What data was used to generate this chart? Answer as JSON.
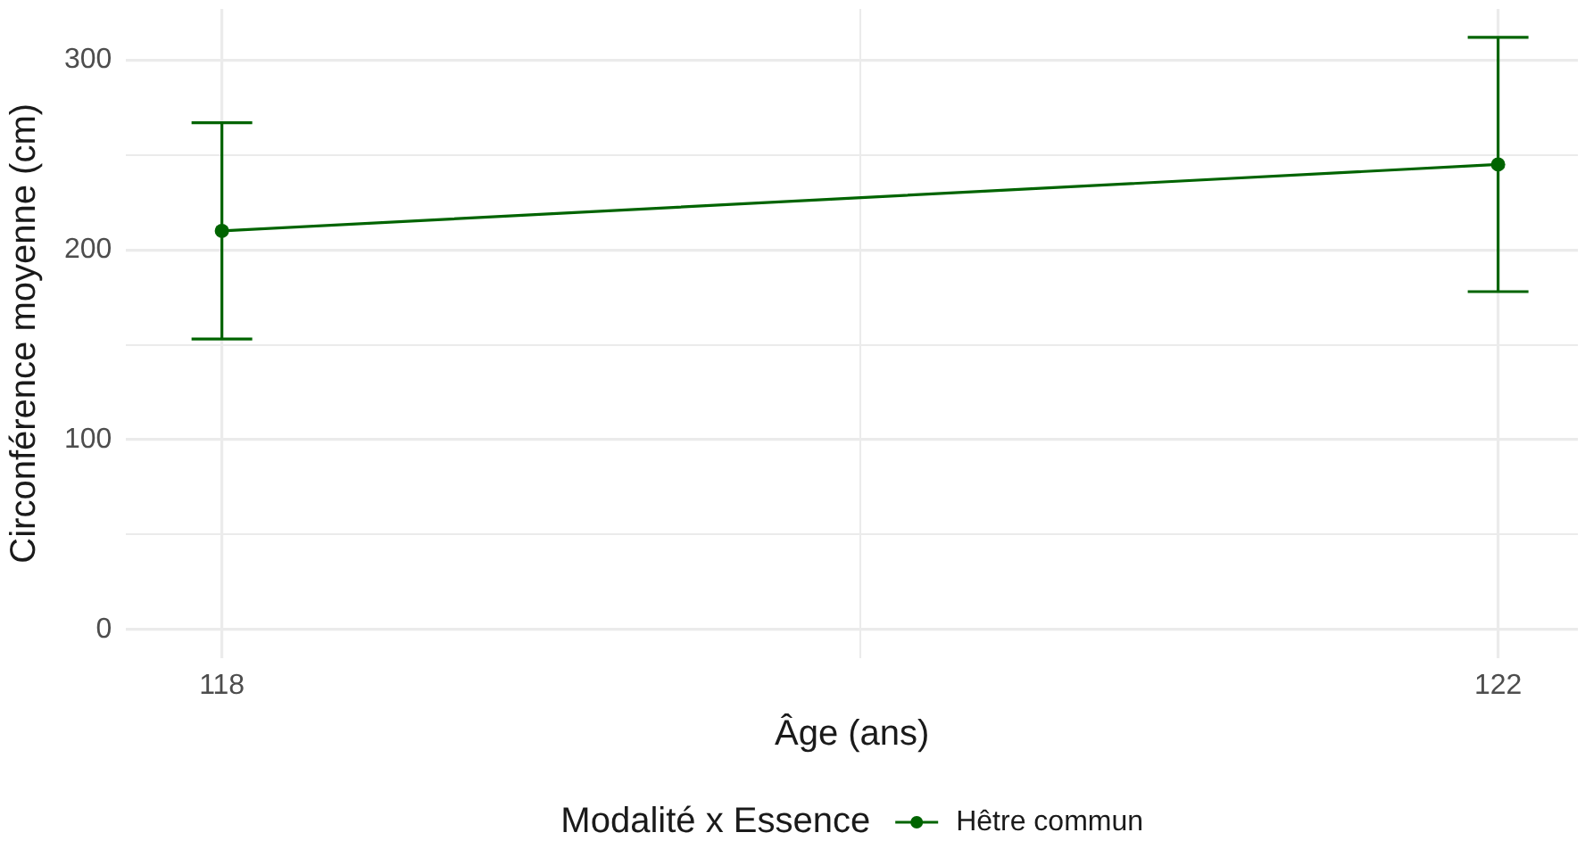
{
  "chart_data": {
    "type": "line",
    "xlabel": "Âge (ans)",
    "ylabel": "Circonférence moyenne (cm)",
    "legend_title": "Modalité x Essence",
    "x": [
      118,
      122
    ],
    "series": [
      {
        "name": "Hêtre commun",
        "color": "#006400",
        "values": [
          210,
          245
        ],
        "errors": [
          57,
          67
        ]
      }
    ],
    "xlim": [
      117.7,
      122.25
    ],
    "xticks": [
      118,
      {
        "value": 120,
        "label": null
      },
      122
    ],
    "ylim": [
      -15,
      327
    ],
    "yticks": [
      0,
      {
        "value": 50,
        "label": null
      },
      100,
      {
        "value": 150,
        "label": null
      },
      200,
      {
        "value": 250,
        "label": null
      },
      300
    ],
    "grid": true,
    "legend": "bottom",
    "marker": "circle",
    "line_style": "solid"
  }
}
